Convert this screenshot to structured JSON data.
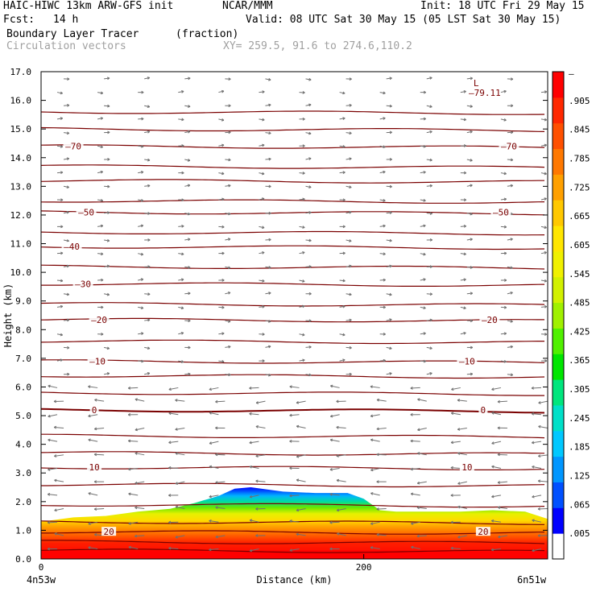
{
  "header": {
    "model": "HAIC-HIWC 13km ARW-GFS init",
    "org": "NCAR/MMM",
    "init": "Init: 18 UTC Fri 29 May 15",
    "fcst_label": "Fcst:",
    "fcst_value": "14 h",
    "valid": "Valid: 08 UTC Sat 30 May 15 (05 LST Sat 30 May 15)",
    "field_name": "Boundary Layer Tracer",
    "field_unit": "(fraction)",
    "vector_label": "Circulation vectors",
    "xy_label": "XY= 259.5, 91.6 to 274.6,110.2"
  },
  "chart_data": {
    "type": "heatmap",
    "xlabel": "Distance (km)",
    "ylabel": "Height (km)",
    "xlim": [
      0,
      314
    ],
    "ylim": [
      0,
      17
    ],
    "x_ticks": [
      {
        "value": 0,
        "label": "0"
      },
      {
        "value": 200,
        "label": "200"
      }
    ],
    "x_end_labels": {
      "left": "4n53w",
      "right": "6n51w"
    },
    "y_ticks": [
      "0.0",
      "1.0",
      "2.0",
      "3.0",
      "4.0",
      "5.0",
      "6.0",
      "7.0",
      "8.0",
      "9.0",
      "10.0",
      "11.0",
      "12.0",
      "13.0",
      "14.0",
      "15.0",
      "16.0",
      "17.0"
    ],
    "colorbar": {
      "labels": [
        ".005",
        ".065",
        ".125",
        ".185",
        ".245",
        ".305",
        ".365",
        ".425",
        ".485",
        ".545",
        ".605",
        ".665",
        ".725",
        ".785",
        ".845",
        ".905"
      ],
      "top_label": "–",
      "colors": [
        "#ffffff",
        "#0000ff",
        "#0050ff",
        "#0096ff",
        "#00c8ff",
        "#00e0c8",
        "#00e67d",
        "#00e600",
        "#50f000",
        "#a0f000",
        "#d2f000",
        "#f0f000",
        "#ffe600",
        "#ffc800",
        "#ffa000",
        "#ff7800",
        "#ff5000",
        "#ff2800",
        "#ff0000"
      ]
    },
    "tracer_top_profile": {
      "x_km": [
        0,
        20,
        40,
        60,
        80,
        95,
        110,
        120,
        130,
        150,
        170,
        190,
        200,
        210,
        220,
        240,
        260,
        280,
        300,
        314
      ],
      "height_km": [
        1.3,
        1.45,
        1.5,
        1.65,
        1.75,
        1.95,
        2.2,
        2.45,
        2.5,
        2.35,
        2.3,
        2.3,
        2.1,
        1.7,
        1.65,
        1.65,
        1.65,
        1.7,
        1.65,
        1.4
      ]
    },
    "contours": [
      {
        "label": "–70",
        "height_km": 14.4,
        "label_positions_km": [
          20,
          290
        ]
      },
      {
        "label": "–50",
        "height_km": 12.1,
        "label_positions_km": [
          28,
          285
        ]
      },
      {
        "label": "–40",
        "height_km": 10.9,
        "label_positions_km": [
          19
        ]
      },
      {
        "label": "–30",
        "height_km": 9.6,
        "label_positions_km": [
          26
        ]
      },
      {
        "label": "–20",
        "height_km": 8.35,
        "label_positions_km": [
          36,
          278
        ]
      },
      {
        "label": "–10",
        "height_km": 6.9,
        "label_positions_km": [
          35,
          264
        ]
      },
      {
        "label": "0",
        "height_km": 5.2,
        "label_positions_km": [
          33,
          274
        ]
      },
      {
        "label": "10",
        "height_km": 3.2,
        "label_positions_km": [
          33,
          264
        ]
      },
      {
        "label": "20",
        "height_km": 0.95,
        "label_positions_km": [
          42,
          274
        ]
      }
    ],
    "contour_levels_unlabeled_km": [
      0.3,
      0.6,
      1.3,
      1.9,
      2.6,
      3.7,
      4.3,
      5.8,
      6.4,
      7.6,
      8.9,
      10.2,
      11.4,
      12.5,
      13.2,
      13.7,
      15.0,
      15.6
    ],
    "extremum": {
      "symbol": "L",
      "value": "–79.11",
      "x_km": 270,
      "height_km": 16.6
    }
  }
}
